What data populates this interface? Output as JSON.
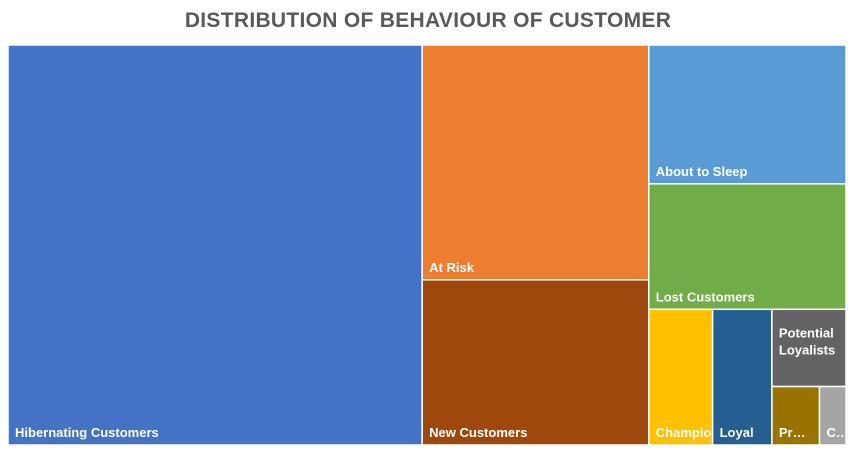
{
  "chart_data": {
    "type": "treemap",
    "title": "DISTRIBUTION OF BEHAVIOUR OF CUSTOMER",
    "series": [
      {
        "name": "Hibernating Customers",
        "label": "Hibernating Customers",
        "value": 1071,
        "color": "#4472C4"
      },
      {
        "name": "At Risk",
        "label": "At Risk",
        "value": 344,
        "color": "#ED7D31"
      },
      {
        "name": "New Customers",
        "label": "New Customers",
        "value": 242,
        "color": "#9E480E"
      },
      {
        "name": "About to Sleep",
        "label": "About to Sleep",
        "value": 177,
        "color": "#5B9BD5"
      },
      {
        "name": "Lost Customers",
        "label": "Lost Customers",
        "value": 160,
        "color": "#70AD47"
      },
      {
        "name": "Champions",
        "label": "Champio…",
        "value": 56,
        "color": "#FFC000"
      },
      {
        "name": "Loyal",
        "label": "Loyal",
        "value": 52,
        "color": "#255E91"
      },
      {
        "name": "Potential Loyalists",
        "label": "Potential Loyalists",
        "value": 37,
        "color": "#636363"
      },
      {
        "name": "Promising",
        "label": "Pr…",
        "value": 18,
        "color": "#997300"
      },
      {
        "name": "Cannot Lose Them",
        "label": "C…",
        "value": 10,
        "color": "#A5A5A5"
      }
    ]
  }
}
